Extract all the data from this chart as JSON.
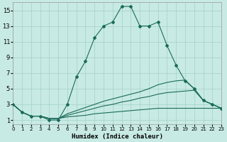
{
  "xlabel": "Humidex (Indice chaleur)",
  "bg_color": "#c8eae4",
  "grid_color": "#a8d4cc",
  "line_color": "#1a6b5a",
  "xlim": [
    0,
    23
  ],
  "ylim": [
    0.5,
    16
  ],
  "xtick_vals": [
    0,
    1,
    2,
    3,
    4,
    5,
    6,
    7,
    8,
    9,
    10,
    11,
    12,
    13,
    14,
    15,
    16,
    17,
    18,
    19,
    20,
    21,
    22,
    23
  ],
  "ytick_vals": [
    1,
    3,
    5,
    7,
    9,
    11,
    13,
    15
  ],
  "main_x": [
    0,
    1,
    2,
    3,
    4,
    5,
    6,
    7,
    8,
    9,
    10,
    11,
    12,
    13,
    14,
    15,
    16,
    17,
    18,
    19,
    20,
    21,
    22,
    23
  ],
  "main_y": [
    3,
    2,
    1.5,
    1.5,
    1,
    1,
    3,
    6.5,
    8.5,
    11.5,
    13,
    13.5,
    15.5,
    15.5,
    13,
    13,
    13.5,
    10.5,
    8,
    6,
    5,
    3.5,
    3,
    2.5
  ],
  "line1_x": [
    0,
    1,
    2,
    3,
    4,
    5,
    6,
    7,
    8,
    9,
    10,
    11,
    12,
    13,
    14,
    15,
    16,
    17,
    18,
    19,
    20,
    21,
    22,
    23
  ],
  "line1_y": [
    3,
    2,
    1.5,
    1.5,
    1.2,
    1.2,
    1.8,
    2.2,
    2.6,
    3.0,
    3.4,
    3.7,
    4.0,
    4.3,
    4.6,
    5.0,
    5.5,
    5.8,
    6.0,
    6.1,
    5.0,
    3.5,
    3.0,
    2.5
  ],
  "line2_x": [
    0,
    1,
    2,
    3,
    4,
    5,
    6,
    7,
    8,
    9,
    10,
    11,
    12,
    13,
    14,
    15,
    16,
    17,
    18,
    19,
    20,
    21,
    22,
    23
  ],
  "line2_y": [
    3,
    2,
    1.5,
    1.5,
    1.2,
    1.2,
    1.6,
    1.9,
    2.2,
    2.5,
    2.8,
    3.0,
    3.3,
    3.5,
    3.8,
    4.0,
    4.3,
    4.5,
    4.6,
    4.7,
    4.8,
    3.5,
    3.0,
    2.5
  ],
  "line3_x": [
    0,
    1,
    2,
    3,
    4,
    5,
    6,
    7,
    8,
    9,
    10,
    11,
    12,
    13,
    14,
    15,
    16,
    17,
    18,
    19,
    20,
    21,
    22,
    23
  ],
  "line3_y": [
    3,
    2,
    1.5,
    1.5,
    1.2,
    1.2,
    1.4,
    1.5,
    1.6,
    1.8,
    1.9,
    2.0,
    2.1,
    2.2,
    2.3,
    2.4,
    2.5,
    2.5,
    2.5,
    2.5,
    2.5,
    2.5,
    2.5,
    2.5
  ]
}
